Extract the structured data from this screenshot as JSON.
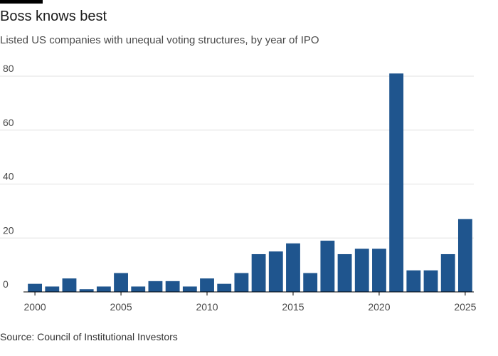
{
  "header": {
    "title": "Boss knows best",
    "subtitle": "Listed US companies with unequal voting structures, by year of IPO"
  },
  "footer": {
    "source": "Source: Council of Institutional Investors"
  },
  "colors": {
    "bar": "#1f558e",
    "grid": "#e0e0e0",
    "axis": "#000000"
  },
  "chart_data": {
    "type": "bar",
    "title": "Boss knows best",
    "subtitle": "Listed US companies with unequal voting structures, by year of IPO",
    "xlabel": "",
    "ylabel": "",
    "categories": [
      2000,
      2001,
      2002,
      2003,
      2004,
      2005,
      2006,
      2007,
      2008,
      2009,
      2010,
      2011,
      2012,
      2013,
      2014,
      2015,
      2016,
      2017,
      2018,
      2019,
      2020,
      2021,
      2022,
      2023,
      2024,
      2025
    ],
    "values": [
      3,
      2,
      5,
      1,
      2,
      7,
      2,
      4,
      4,
      2,
      5,
      3,
      7,
      14,
      15,
      18,
      7,
      19,
      14,
      16,
      16,
      81,
      8,
      8,
      14,
      27
    ],
    "x_tick_labels": [
      "2000",
      "2005",
      "2010",
      "2015",
      "2020",
      "2025"
    ],
    "y_ticks": [
      "0",
      "20",
      "40",
      "60",
      "80"
    ],
    "ylim": [
      0,
      80
    ],
    "grid": true,
    "legend": "none"
  }
}
